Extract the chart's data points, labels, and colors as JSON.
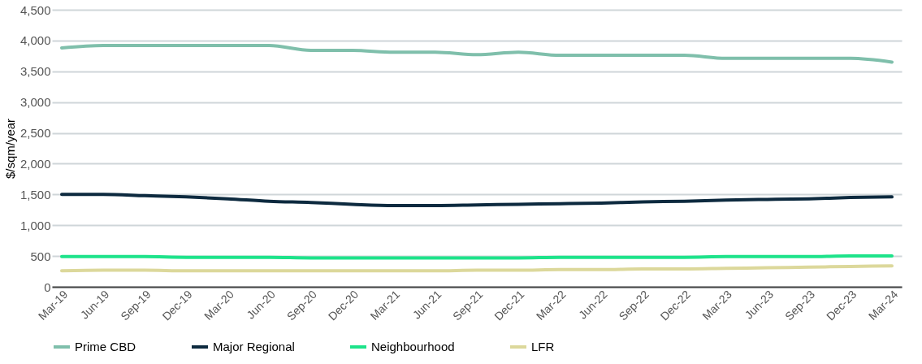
{
  "chart_data": {
    "type": "line",
    "ylabel": "$/sqm/year",
    "categories": [
      "Mar-19",
      "Jun-19",
      "Sep-19",
      "Dec-19",
      "Mar-20",
      "Jun-20",
      "Sep-20",
      "Dec-20",
      "Mar-21",
      "Jun-21",
      "Sep-21",
      "Dec-21",
      "Mar-22",
      "Jun-22",
      "Sep-22",
      "Dec-22",
      "Mar-23",
      "Jun-23",
      "Sep-23",
      "Dec-23",
      "Mar-24"
    ],
    "series": [
      {
        "name": "Prime CBD",
        "color": "#7fbfab",
        "values": [
          3880,
          3920,
          3920,
          3920,
          3920,
          3920,
          3840,
          3840,
          3810,
          3810,
          3770,
          3810,
          3760,
          3760,
          3760,
          3760,
          3710,
          3710,
          3710,
          3710,
          3650
        ]
      },
      {
        "name": "Major Regional",
        "color": "#0d2a3f",
        "values": [
          1500,
          1500,
          1480,
          1460,
          1430,
          1390,
          1370,
          1340,
          1320,
          1320,
          1330,
          1340,
          1350,
          1360,
          1380,
          1390,
          1410,
          1420,
          1430,
          1450,
          1460
        ]
      },
      {
        "name": "Neighbourhood",
        "color": "#1de38a",
        "values": [
          490,
          490,
          490,
          480,
          480,
          480,
          470,
          470,
          470,
          470,
          470,
          470,
          480,
          480,
          480,
          480,
          490,
          490,
          490,
          500,
          500
        ]
      },
      {
        "name": "LFR",
        "color": "#dcd89b",
        "values": [
          260,
          270,
          270,
          260,
          260,
          260,
          260,
          260,
          260,
          260,
          270,
          270,
          280,
          280,
          290,
          290,
          300,
          310,
          320,
          330,
          340
        ]
      }
    ],
    "ylim": [
      0,
      4500
    ],
    "yticks": [
      0,
      {
        "value": 500,
        "label": "500"
      },
      {
        "value": 1000,
        "label": "1,000"
      },
      {
        "value": 1500,
        "label": "1,500"
      },
      {
        "value": 2000,
        "label": "2,000"
      },
      {
        "value": 2500,
        "label": "2,500"
      },
      {
        "value": 3000,
        "label": "3,000"
      },
      {
        "value": 3500,
        "label": "3,500"
      },
      {
        "value": 4000,
        "label": "4,000"
      },
      {
        "value": 4500,
        "label": "4,500"
      }
    ],
    "grid": "y",
    "legend": "bottom",
    "marker": "none",
    "line_style": "solid"
  }
}
